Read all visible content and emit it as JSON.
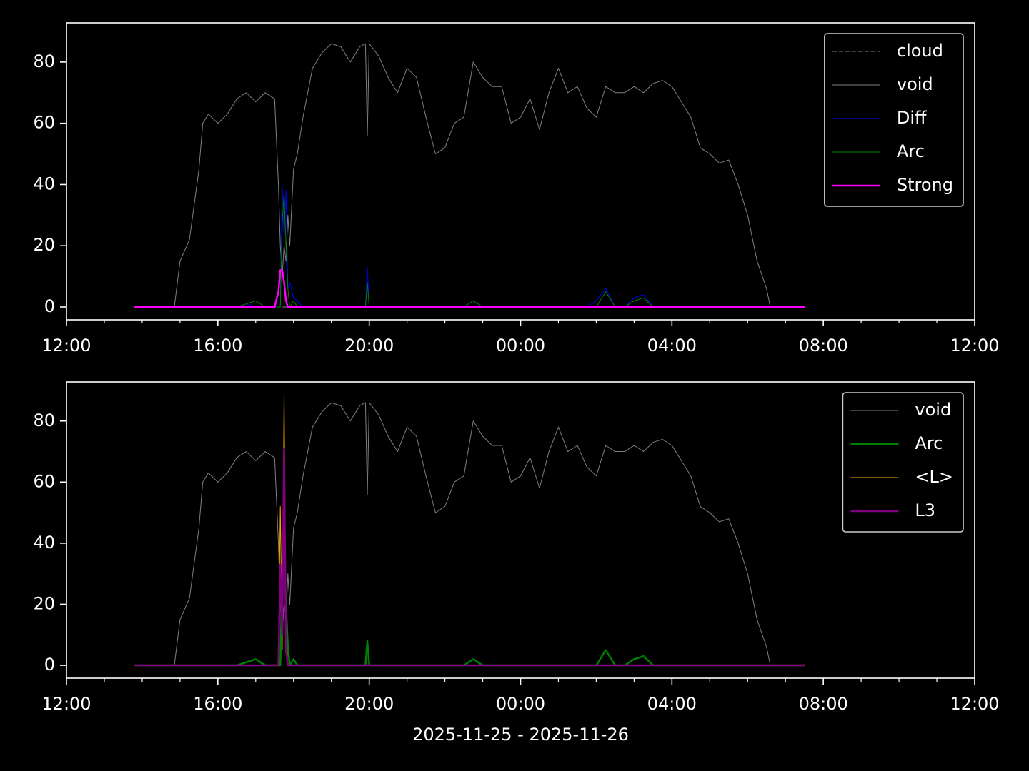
{
  "chart_data": [
    {
      "type": "line",
      "x": [
        13.8,
        14.0,
        14.5,
        14.85,
        15.0,
        15.25,
        15.5,
        15.6,
        15.75,
        16.0,
        16.25,
        16.5,
        16.75,
        17.0,
        17.25,
        17.5,
        17.6,
        17.65,
        17.7,
        17.75,
        17.8,
        17.85,
        17.9,
        18.0,
        18.1,
        18.25,
        18.5,
        18.75,
        19.0,
        19.25,
        19.5,
        19.75,
        19.9,
        19.95,
        20.0,
        20.25,
        20.5,
        20.75,
        21.0,
        21.25,
        21.5,
        21.75,
        22.0,
        22.25,
        22.5,
        22.75,
        23.0,
        23.25,
        23.5,
        23.75,
        24.0,
        24.25,
        24.5,
        24.75,
        25.0,
        25.25,
        25.5,
        25.75,
        26.0,
        26.25,
        26.5,
        26.75,
        27.0,
        27.25,
        27.5,
        27.75,
        28.0,
        28.25,
        28.5,
        28.75,
        29.0,
        29.25,
        29.5,
        29.75,
        30.0,
        30.25,
        30.5,
        30.6,
        31.0,
        31.52
      ],
      "xlim": [
        12,
        36
      ],
      "xticks": [
        {
          "value": 12,
          "label": "12:00"
        },
        {
          "value": 16,
          "label": "16:00"
        },
        {
          "value": 20,
          "label": "20:00"
        },
        {
          "value": 24,
          "label": "00:00"
        },
        {
          "value": 28,
          "label": "04:00"
        },
        {
          "value": 32,
          "label": "08:00"
        },
        {
          "value": 36,
          "label": "12:00"
        }
      ],
      "xminorticks": [
        13,
        14,
        15,
        17,
        18,
        19,
        21,
        22,
        23,
        25,
        26,
        27,
        29,
        30,
        31,
        33,
        34,
        35
      ],
      "ylim": [
        -4.2,
        92.8
      ],
      "yticks": [
        0,
        20,
        40,
        60,
        80
      ],
      "legend": "upper right",
      "series": [
        {
          "name": "cloud",
          "color": "#808080",
          "dashed": true,
          "width": 1,
          "values": [
            0,
            0,
            0,
            0,
            0,
            0,
            0,
            0,
            0,
            0,
            0,
            0,
            0,
            0,
            0,
            0,
            0,
            0,
            0,
            0,
            0,
            0,
            0,
            0,
            0,
            0,
            0,
            0,
            0,
            0,
            0,
            0,
            0,
            0,
            0,
            0,
            0,
            0,
            0,
            0,
            0,
            0,
            0,
            0,
            0,
            0,
            0,
            0,
            0,
            0,
            0,
            0,
            0,
            0,
            0,
            0,
            0,
            0,
            0,
            0,
            0,
            0,
            0,
            0,
            0,
            0,
            0,
            0,
            0,
            0,
            0,
            0,
            0,
            0,
            0,
            0,
            0,
            0,
            0,
            0
          ]
        },
        {
          "name": "void",
          "color": "#808080",
          "width": 1,
          "values": [
            null,
            null,
            null,
            0,
            15,
            22,
            45,
            60,
            63,
            60,
            63,
            68,
            70,
            67,
            70,
            68,
            40,
            20,
            10,
            20,
            15,
            30,
            20,
            45,
            50,
            62,
            78,
            83,
            86,
            85,
            80,
            85,
            86,
            56,
            86,
            82,
            75,
            70,
            78,
            75,
            62,
            50,
            52,
            60,
            62,
            80,
            75,
            72,
            72,
            60,
            62,
            68,
            58,
            70,
            78,
            70,
            72,
            65,
            62,
            72,
            70,
            70,
            72,
            70,
            73,
            74,
            72,
            67,
            62,
            52,
            50,
            47,
            48,
            40,
            30,
            15,
            6,
            0,
            null,
            null
          ]
        },
        {
          "name": "Diff",
          "color": "#0000ff",
          "width": 1,
          "values": [
            0,
            0,
            0,
            0,
            0,
            0,
            0,
            0,
            0,
            0,
            0,
            0,
            1,
            0,
            0,
            0,
            0,
            0,
            40,
            22,
            38,
            6,
            8,
            3,
            2,
            0,
            0,
            0,
            0,
            0,
            0,
            0,
            0,
            13,
            0,
            0,
            0,
            0,
            0,
            0,
            0,
            0,
            0,
            0,
            0,
            2,
            0,
            0,
            0,
            0,
            0,
            0,
            0,
            0,
            0,
            0,
            0,
            0,
            2,
            6,
            0,
            0,
            3,
            4,
            0,
            0,
            0,
            0,
            0,
            0,
            0,
            0,
            0,
            0,
            0,
            0,
            0,
            0,
            0,
            0
          ]
        },
        {
          "name": "Arc",
          "color": "#008000",
          "width": 1,
          "values": [
            0,
            0,
            0,
            0,
            0,
            0,
            0,
            0,
            0,
            0,
            0,
            0,
            1,
            2,
            0,
            0,
            0,
            0,
            28,
            37,
            20,
            6,
            0,
            2,
            0,
            0,
            0,
            0,
            0,
            0,
            0,
            0,
            0,
            8,
            0,
            0,
            0,
            0,
            0,
            0,
            0,
            0,
            0,
            0,
            0,
            2,
            0,
            0,
            0,
            0,
            0,
            0,
            0,
            0,
            0,
            0,
            0,
            0,
            0,
            5,
            0,
            0,
            2,
            3,
            0,
            0,
            0,
            0,
            0,
            0,
            0,
            0,
            0,
            0,
            0,
            0,
            0,
            0,
            0,
            0
          ]
        },
        {
          "name": "Strong",
          "color": "#ff00ff",
          "width": 2.5,
          "values": [
            0,
            0,
            0,
            0,
            0,
            0,
            0,
            0,
            0,
            0,
            0,
            0,
            0,
            0,
            0,
            0,
            5,
            12,
            12,
            8,
            2,
            0,
            0,
            0,
            0,
            0,
            0,
            0,
            0,
            0,
            0,
            0,
            0,
            0,
            0,
            0,
            0,
            0,
            0,
            0,
            0,
            0,
            0,
            0,
            0,
            0,
            0,
            0,
            0,
            0,
            0,
            0,
            0,
            0,
            0,
            0,
            0,
            0,
            0,
            0,
            0,
            0,
            0,
            0,
            0,
            0,
            0,
            0,
            0,
            0,
            0,
            0,
            0,
            0,
            0,
            0,
            0,
            0,
            0,
            0
          ]
        }
      ]
    },
    {
      "type": "line",
      "x": [
        13.8,
        14.0,
        14.5,
        14.85,
        15.0,
        15.25,
        15.5,
        15.6,
        15.75,
        16.0,
        16.25,
        16.5,
        16.75,
        17.0,
        17.25,
        17.5,
        17.6,
        17.65,
        17.7,
        17.75,
        17.8,
        17.85,
        17.9,
        18.0,
        18.1,
        18.25,
        18.5,
        18.75,
        19.0,
        19.25,
        19.5,
        19.75,
        19.9,
        19.95,
        20.0,
        20.25,
        20.5,
        20.75,
        21.0,
        21.25,
        21.5,
        21.75,
        22.0,
        22.25,
        22.5,
        22.75,
        23.0,
        23.25,
        23.5,
        23.75,
        24.0,
        24.25,
        24.5,
        24.75,
        25.0,
        25.25,
        25.5,
        25.75,
        26.0,
        26.25,
        26.5,
        26.75,
        27.0,
        27.25,
        27.5,
        27.75,
        28.0,
        28.25,
        28.5,
        28.75,
        29.0,
        29.25,
        29.5,
        29.75,
        30.0,
        30.25,
        30.5,
        30.6,
        31.0,
        31.52
      ],
      "xlim": [
        12,
        36
      ],
      "xticks": [
        {
          "value": 12,
          "label": "12:00"
        },
        {
          "value": 16,
          "label": "16:00"
        },
        {
          "value": 20,
          "label": "20:00"
        },
        {
          "value": 24,
          "label": "00:00"
        },
        {
          "value": 28,
          "label": "04:00"
        },
        {
          "value": 32,
          "label": "08:00"
        },
        {
          "value": 36,
          "label": "12:00"
        }
      ],
      "xminorticks": [
        13,
        14,
        15,
        17,
        18,
        19,
        21,
        22,
        23,
        25,
        26,
        27,
        29,
        30,
        31,
        33,
        34,
        35
      ],
      "xlabel": "2025-11-25 - 2025-11-26",
      "ylim": [
        -4.2,
        92.8
      ],
      "yticks": [
        0,
        20,
        40,
        60,
        80
      ],
      "legend": "upper right",
      "series": [
        {
          "name": "void",
          "color": "#808080",
          "width": 1,
          "values": [
            null,
            null,
            null,
            0,
            15,
            22,
            45,
            60,
            63,
            60,
            63,
            68,
            70,
            67,
            70,
            68,
            40,
            20,
            10,
            20,
            15,
            30,
            20,
            45,
            50,
            62,
            78,
            83,
            86,
            85,
            80,
            85,
            86,
            56,
            86,
            82,
            75,
            70,
            78,
            75,
            62,
            50,
            52,
            60,
            62,
            80,
            75,
            72,
            72,
            60,
            62,
            68,
            58,
            70,
            78,
            70,
            72,
            65,
            62,
            72,
            70,
            70,
            72,
            70,
            73,
            74,
            72,
            67,
            62,
            52,
            50,
            47,
            48,
            40,
            30,
            15,
            6,
            0,
            null,
            null
          ]
        },
        {
          "name": "Arc",
          "color": "#008000",
          "width": 2.5,
          "values": [
            0,
            0,
            0,
            0,
            0,
            0,
            0,
            0,
            0,
            0,
            0,
            0,
            1,
            2,
            0,
            0,
            0,
            0,
            28,
            37,
            20,
            6,
            0,
            2,
            0,
            0,
            0,
            0,
            0,
            0,
            0,
            0,
            0,
            8,
            0,
            0,
            0,
            0,
            0,
            0,
            0,
            0,
            0,
            0,
            0,
            2,
            0,
            0,
            0,
            0,
            0,
            0,
            0,
            0,
            0,
            0,
            0,
            0,
            0,
            5,
            0,
            0,
            2,
            3,
            0,
            0,
            0,
            0,
            0,
            0,
            0,
            0,
            0,
            0,
            0,
            0,
            0,
            0,
            0,
            0
          ]
        },
        {
          "name": "<L>",
          "color": "#ffa500",
          "width": 1,
          "values": [
            0,
            0,
            0,
            0,
            0,
            0,
            0,
            0,
            0,
            0,
            0,
            0,
            0,
            0,
            0,
            0,
            0,
            52,
            5,
            89,
            10,
            0,
            0,
            0,
            0,
            0,
            0,
            0,
            0,
            0,
            0,
            0,
            0,
            0,
            0,
            0,
            0,
            0,
            0,
            0,
            0,
            0,
            0,
            0,
            0,
            0,
            0,
            0,
            0,
            0,
            0,
            0,
            0,
            0,
            0,
            0,
            0,
            0,
            0,
            0,
            0,
            0,
            0,
            0,
            0,
            0,
            0,
            0,
            0,
            0,
            0,
            0,
            0,
            0,
            0,
            0,
            0,
            0,
            0,
            0
          ]
        },
        {
          "name": "L3",
          "color": "#800080",
          "width": 2.5,
          "values": [
            0,
            0,
            0,
            0,
            0,
            0,
            0,
            0,
            0,
            0,
            0,
            0,
            0,
            0,
            0,
            0,
            0,
            33,
            10,
            71,
            5,
            0,
            0,
            0,
            0,
            0,
            0,
            0,
            0,
            0,
            0,
            0,
            0,
            0,
            0,
            0,
            0,
            0,
            0,
            0,
            0,
            0,
            0,
            0,
            0,
            0,
            0,
            0,
            0,
            0,
            0,
            0,
            0,
            0,
            0,
            0,
            0,
            0,
            0,
            0,
            0,
            0,
            0,
            0,
            0,
            0,
            0,
            0,
            0,
            0,
            0,
            0,
            0,
            0,
            0,
            0,
            0,
            0,
            0,
            0
          ]
        }
      ]
    }
  ]
}
